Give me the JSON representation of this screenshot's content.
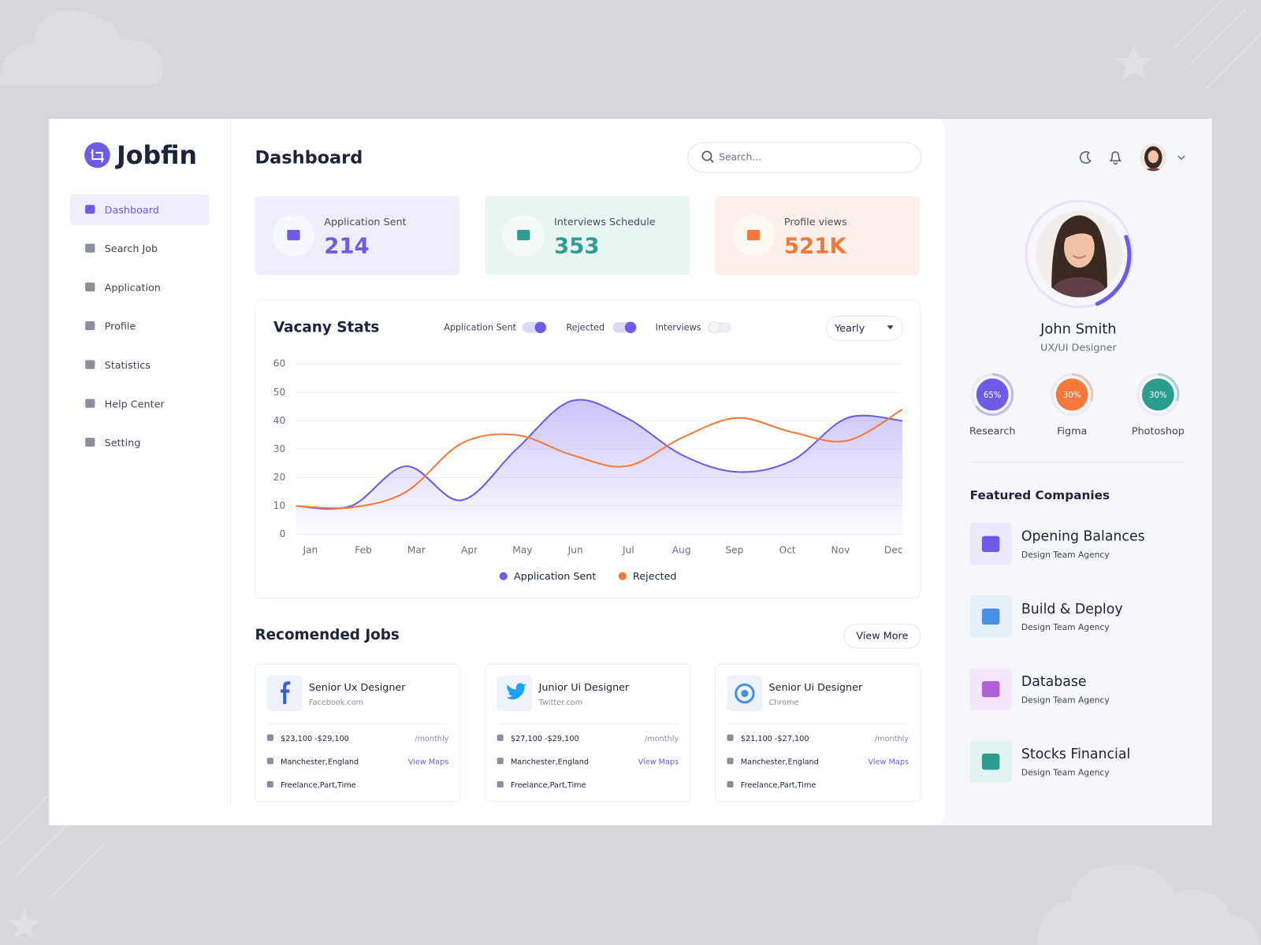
{
  "brand": "Jobfin",
  "nav": [
    {
      "label": "Dashboard",
      "active": true
    },
    {
      "label": "Search Job",
      "active": false
    },
    {
      "label": "Application",
      "active": false
    },
    {
      "label": "Profile",
      "active": false
    },
    {
      "label": "Statistics",
      "active": false
    },
    {
      "label": "Help Center",
      "active": false
    },
    {
      "label": "Setting",
      "active": false
    }
  ],
  "page_title": "Dashboard",
  "search_placeholder": "Search...",
  "stats": [
    {
      "label": "Application Sent",
      "value": "214",
      "color": "#6c5ce7",
      "bg": "#efeefc"
    },
    {
      "label": "Interviews Schedule",
      "value": "353",
      "color": "#2e9e92",
      "bg": "#e8f5f3"
    },
    {
      "label": "Profile views",
      "value": "521K",
      "color": "#f4793b",
      "bg": "#fdf0ea"
    }
  ],
  "chart_controls": {
    "toggles": [
      {
        "label": "Application Sent",
        "on": true
      },
      {
        "label": "Rejected",
        "on": true
      },
      {
        "label": "Interviews",
        "on": false
      }
    ],
    "period": "Yearly"
  },
  "chart_data": {
    "type": "line",
    "title": "Vacany Stats",
    "categories": [
      "Jan",
      "Feb",
      "Mar",
      "Apr",
      "May",
      "Jun",
      "Jul",
      "Aug",
      "Sep",
      "Oct",
      "Nov",
      "Dec"
    ],
    "series": [
      {
        "name": "Application Sent",
        "color": "#6c5ce7",
        "fill": true,
        "values": [
          10,
          10,
          24,
          12,
          30,
          47,
          41,
          28,
          22,
          26,
          41,
          40
        ]
      },
      {
        "name": "Rejected",
        "color": "#f4793b",
        "fill": false,
        "values": [
          10,
          9.5,
          15,
          32,
          35,
          28,
          24,
          34,
          41,
          36,
          33,
          44
        ]
      }
    ],
    "ylim": [
      0,
      60
    ],
    "yticks": [
      0,
      10,
      20,
      30,
      40,
      50,
      60
    ],
    "grid": true
  },
  "jobs_section": {
    "title": "Recomended Jobs",
    "action": "View More"
  },
  "jobs": [
    {
      "title": "Senior Ux Designer",
      "company": "Facebook.com",
      "salary": "$23,100 -$29,100",
      "period": "/monthly",
      "location": "Manchester,England",
      "map_link": "View Maps",
      "job_type": "Freelance,Part,Time"
    },
    {
      "title": "Junior Ui Designer",
      "company": "Twitter.com",
      "salary": "$27,100 -$29,100",
      "period": "/monthly",
      "location": "Manchester,England",
      "map_link": "View Maps",
      "job_type": "Freelance,Part,Time"
    },
    {
      "title": "Senior Ui Designer",
      "company": "Chrome",
      "salary": "$21,100 -$27,100",
      "period": "/monthly",
      "location": "Manchester,England",
      "map_link": "View Maps",
      "job_type": "Freelance,Part,Time"
    }
  ],
  "profile": {
    "name": "John Smith",
    "role": "UX/UI Designer"
  },
  "skills": [
    {
      "name": "Research",
      "percent": 65,
      "label": "65%",
      "color": "#6c5ce7"
    },
    {
      "name": "Figma",
      "percent": 30,
      "label": "30%",
      "color": "#f4793b"
    },
    {
      "name": "Photoshop",
      "percent": 30,
      "label": "30%",
      "color": "#2a9d8f"
    }
  ],
  "companies_title": "Featured Companies",
  "companies": [
    {
      "name": "Opening Balances",
      "subtitle": "Design Team Agency"
    },
    {
      "name": "Build & Deploy",
      "subtitle": "Design Team Agency"
    },
    {
      "name": "Database",
      "subtitle": "Design Team Agency"
    },
    {
      "name": "Stocks Financial",
      "subtitle": "Design Team Agency"
    }
  ]
}
